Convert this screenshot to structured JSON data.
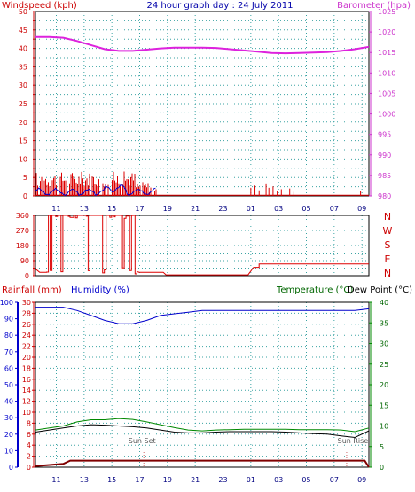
{
  "chart_data": [
    {
      "type": "line",
      "panel": "wind-baro",
      "title": "24 hour graph day : 24 July 2011",
      "ylabel_left": "Windspeed (kph)",
      "ylabel_right": "Barometer (hpa)",
      "x_ticks": [
        "11",
        "13",
        "15",
        "17",
        "19",
        "21",
        "23",
        "01",
        "03",
        "05",
        "07",
        "09"
      ],
      "ylim_left": [
        0,
        50
      ],
      "ylim_right": [
        980,
        1025
      ],
      "y_ticks_left": [
        0,
        2.5,
        5,
        7.5,
        10,
        12.5,
        15,
        17.5,
        20,
        22.5,
        25,
        27.5,
        30,
        32.5,
        35,
        37.5,
        40,
        42.5,
        45,
        47.5,
        50
      ],
      "y_ticks_left_labels": [
        "0",
        "",
        "5",
        "",
        "10",
        "",
        "15",
        "",
        "20",
        "",
        "25",
        "",
        "30",
        "",
        "35",
        "",
        "40",
        "",
        "45",
        "",
        "50"
      ],
      "y_ticks_right": [
        980,
        985,
        990,
        995,
        1000,
        1005,
        1010,
        1015,
        1020,
        1025
      ],
      "grid": true,
      "colors": {
        "title": "#0000aa",
        "left": "#cc0000",
        "right": "#cc33cc",
        "wind": "#dd0000",
        "avg": "#0000cc",
        "baro": "#dd22dd"
      },
      "series": [
        {
          "name": "Barometer (hpa)",
          "axis": "right",
          "x": [
            9.5,
            10.5,
            11.5,
            12.5,
            13.5,
            14.5,
            15.5,
            16.5,
            17.5,
            18.5,
            19.5,
            20.5,
            21.5,
            22.5,
            23.5,
            24.5,
            25.5,
            26.5,
            27.5,
            28.5,
            29.5,
            30.5,
            31.5,
            32.5,
            33.5
          ],
          "values": [
            1018.8,
            1018.8,
            1018.6,
            1017.8,
            1016.8,
            1015.8,
            1015.4,
            1015.4,
            1015.7,
            1016.0,
            1016.2,
            1016.2,
            1016.2,
            1016.1,
            1015.8,
            1015.5,
            1015.2,
            1014.9,
            1014.8,
            1014.9,
            1015.0,
            1015.1,
            1015.4,
            1015.8,
            1016.4
          ]
        }
      ]
    },
    {
      "type": "line",
      "panel": "wind-direction",
      "ylim": [
        0,
        360
      ],
      "y_ticks": [
        0,
        45,
        90,
        135,
        180,
        225,
        270,
        315,
        360
      ],
      "y_ticks_labels": [
        "0",
        "",
        "90",
        "",
        "180",
        "",
        "270",
        "",
        "360"
      ],
      "direction_labels": [
        "N",
        "W",
        "S",
        "E",
        "N"
      ],
      "colors": {
        "line": "#dd0000",
        "labels": "#cc0000"
      }
    },
    {
      "type": "line",
      "panel": "temp-hum-rain",
      "labels": {
        "rain": "Rainfall (mm)",
        "hum": "Humidity (%)",
        "temp": "Temperature (°C)",
        "dew": "Dew Point (°C)"
      },
      "ylim_humidity": [
        0,
        100
      ],
      "ylim_rain": [
        0,
        30
      ],
      "ylim_temperature": [
        0,
        40
      ],
      "y_ticks_humidity": [
        0,
        10,
        20,
        30,
        40,
        50,
        60,
        70,
        80,
        90,
        100
      ],
      "y_ticks_rain": [
        0,
        2,
        4,
        6,
        8,
        10,
        12,
        14,
        16,
        18,
        20,
        22,
        24,
        26,
        28,
        30
      ],
      "y_ticks_temperature": [
        0,
        5,
        10,
        15,
        20,
        25,
        30,
        35,
        40
      ],
      "annotations": [
        "Sun Set",
        "Sun Rise"
      ],
      "colors": {
        "rain": "#800000",
        "hum": "#0000cc",
        "temp": "#008800",
        "dew": "#000000",
        "rain_label": "#cc0000",
        "hum_label": "#0000cc",
        "temp_label": "#006600"
      },
      "series": [
        {
          "name": "Humidity (%)",
          "axis": "humidity",
          "x": [
            9.5,
            10.5,
            11.5,
            12.5,
            13.5,
            14.5,
            15.5,
            16.5,
            17.5,
            18.5,
            19.5,
            20.5,
            21.5,
            22.5,
            23.5,
            24.5,
            25.5,
            26.5,
            27.5,
            28.5,
            29.5,
            30.5,
            31.5,
            32.5,
            33.5
          ],
          "values": [
            97,
            97,
            97,
            95,
            92,
            89,
            87,
            87,
            89,
            92,
            93,
            94,
            95,
            95,
            95,
            95,
            95,
            95,
            95,
            95,
            95,
            95,
            95,
            95,
            96
          ]
        },
        {
          "name": "Temperature (°C)",
          "axis": "temperature",
          "x": [
            9.5,
            10.5,
            11.5,
            12.5,
            13.5,
            14.5,
            15.5,
            16.5,
            17.5,
            18.5,
            19.5,
            20.5,
            21.5,
            22.5,
            23.5,
            24.5,
            25.5,
            26.5,
            27.5,
            28.5,
            29.5,
            30.5,
            31.5,
            32.5,
            33.5
          ],
          "values": [
            9.0,
            9.5,
            10.0,
            11.0,
            11.5,
            11.5,
            11.8,
            11.6,
            11.0,
            10.3,
            9.6,
            9.0,
            8.8,
            9.0,
            9.1,
            9.2,
            9.2,
            9.2,
            9.2,
            9.1,
            9.1,
            9.1,
            9.0,
            8.6,
            9.5
          ]
        },
        {
          "name": "Dew Point (°C)",
          "axis": "temperature",
          "x": [
            9.5,
            10.5,
            11.5,
            12.5,
            13.5,
            14.5,
            15.5,
            16.5,
            17.5,
            18.5,
            19.5,
            20.5,
            21.5,
            22.5,
            23.5,
            24.5,
            25.5,
            26.5,
            27.5,
            28.5,
            29.5,
            30.5,
            31.5,
            32.5,
            33.5
          ],
          "values": [
            8.5,
            9.0,
            9.5,
            10.0,
            10.3,
            10.2,
            10.0,
            9.8,
            9.5,
            9.0,
            8.5,
            8.3,
            8.3,
            8.5,
            8.6,
            8.6,
            8.6,
            8.6,
            8.5,
            8.3,
            8.1,
            8.0,
            7.6,
            7.2,
            8.8
          ]
        },
        {
          "name": "Rainfall (mm)",
          "axis": "rain",
          "x": [
            9.5,
            10.5,
            11.5,
            12.0,
            12.5,
            33.2,
            33.5
          ],
          "values": [
            0.2,
            0.4,
            0.6,
            1.2,
            1.2,
            1.2,
            0
          ]
        }
      ]
    }
  ]
}
